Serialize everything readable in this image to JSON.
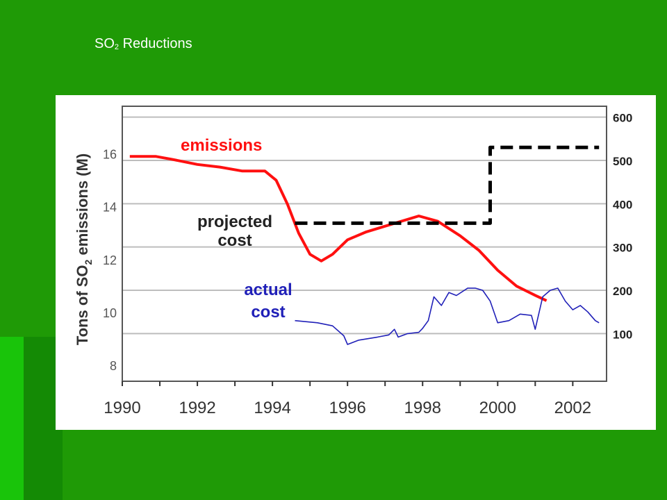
{
  "slide": {
    "title_prefix": "SO",
    "title_sub": "2",
    "title_suffix": " Reductions",
    "colors": {
      "background": "#1f9a06",
      "stripe_bright": "#19c40a",
      "stripe_dark": "#148a05",
      "panel": "#ffffff"
    }
  },
  "chart_data": {
    "type": "line",
    "title": "",
    "ylabel_parts": [
      "Tons of SO",
      "2",
      " emissions (M)"
    ],
    "xlabel": "",
    "x_ticks": [
      "1990",
      "1992",
      "1994",
      "1996",
      "1998",
      "2000",
      "2002"
    ],
    "xlim": [
      1990,
      2002.9
    ],
    "y_left": {
      "ticks": [
        8,
        10,
        12,
        14,
        16
      ],
      "lim": [
        7.4,
        17.8
      ]
    },
    "y_right": {
      "ticks": [
        100,
        200,
        300,
        400,
        500,
        600
      ],
      "lim": [
        -10,
        625
      ]
    },
    "grid": true,
    "series": [
      {
        "name": "emissions",
        "axis": "left",
        "color": "#ff1010",
        "style": "solid",
        "label_lines": [
          "emissions"
        ],
        "points": [
          [
            1990.2,
            15.9
          ],
          [
            1990.9,
            15.9
          ],
          [
            1991.3,
            15.8
          ],
          [
            1992.0,
            15.6
          ],
          [
            1992.6,
            15.5
          ],
          [
            1993.2,
            15.35
          ],
          [
            1993.8,
            15.35
          ],
          [
            1994.1,
            15.0
          ],
          [
            1994.4,
            14.1
          ],
          [
            1994.7,
            13.0
          ],
          [
            1995.0,
            12.2
          ],
          [
            1995.3,
            11.95
          ],
          [
            1995.6,
            12.2
          ],
          [
            1996.0,
            12.75
          ],
          [
            1996.5,
            13.05
          ],
          [
            1997.2,
            13.35
          ],
          [
            1997.9,
            13.65
          ],
          [
            1998.4,
            13.45
          ],
          [
            1999.0,
            12.9
          ],
          [
            1999.5,
            12.35
          ],
          [
            2000.0,
            11.6
          ],
          [
            2000.5,
            11.0
          ],
          [
            2001.0,
            10.65
          ],
          [
            2001.3,
            10.45
          ]
        ]
      },
      {
        "name": "projected cost",
        "axis": "right",
        "color": "#000000",
        "style": "dashed",
        "label_lines": [
          "projected",
          "cost"
        ],
        "points": [
          [
            1994.6,
            355
          ],
          [
            1999.8,
            355
          ],
          [
            1999.8,
            530
          ],
          [
            2002.7,
            530
          ]
        ]
      },
      {
        "name": "actual cost",
        "axis": "right",
        "color": "#2020b8",
        "style": "solid",
        "label_lines": [
          "actual",
          "cost"
        ],
        "points": [
          [
            1994.6,
            130
          ],
          [
            1995.2,
            125
          ],
          [
            1995.6,
            118
          ],
          [
            1995.9,
            95
          ],
          [
            1996.0,
            75
          ],
          [
            1996.3,
            85
          ],
          [
            1996.8,
            92
          ],
          [
            1997.1,
            97
          ],
          [
            1997.25,
            110
          ],
          [
            1997.35,
            92
          ],
          [
            1997.6,
            100
          ],
          [
            1997.9,
            103
          ],
          [
            1998.0,
            112
          ],
          [
            1998.15,
            130
          ],
          [
            1998.3,
            185
          ],
          [
            1998.5,
            165
          ],
          [
            1998.7,
            195
          ],
          [
            1998.9,
            188
          ],
          [
            1999.2,
            205
          ],
          [
            1999.4,
            205
          ],
          [
            1999.6,
            200
          ],
          [
            1999.8,
            175
          ],
          [
            2000.0,
            125
          ],
          [
            2000.3,
            130
          ],
          [
            2000.6,
            145
          ],
          [
            2000.9,
            142
          ],
          [
            2001.0,
            110
          ],
          [
            2001.2,
            185
          ],
          [
            2001.4,
            200
          ],
          [
            2001.6,
            205
          ],
          [
            2001.8,
            175
          ],
          [
            2002.0,
            155
          ],
          [
            2002.2,
            165
          ],
          [
            2002.4,
            150
          ],
          [
            2002.6,
            130
          ],
          [
            2002.7,
            125
          ]
        ]
      }
    ]
  }
}
